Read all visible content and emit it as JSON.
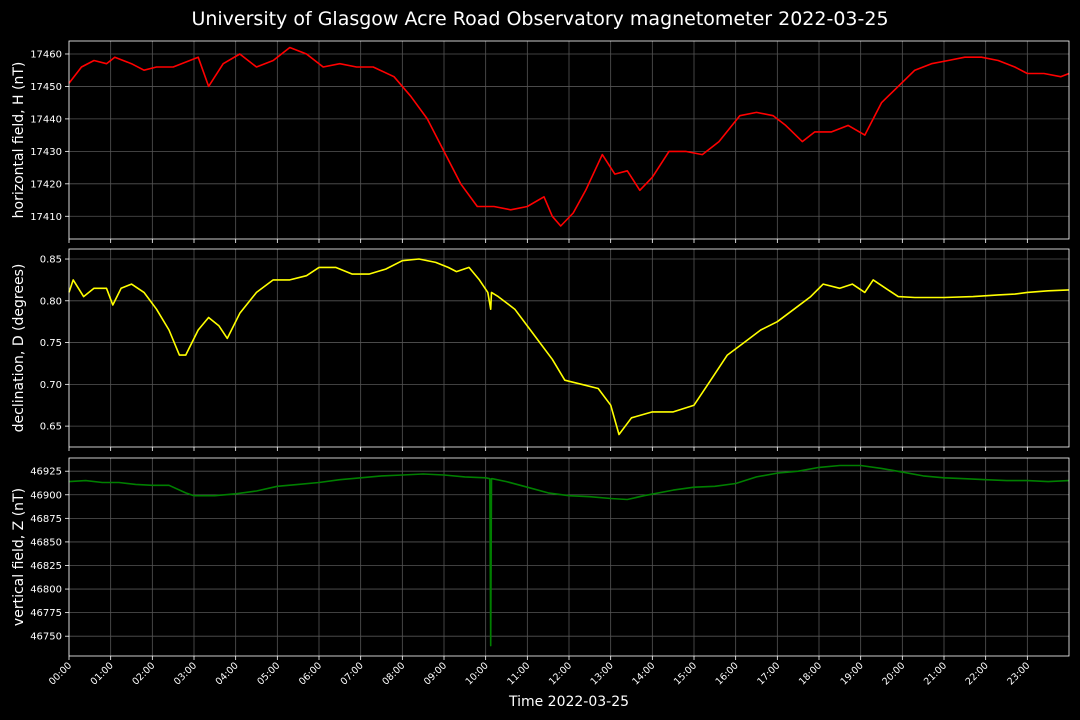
{
  "chart_data": {
    "type": "line",
    "title": "University of Glasgow Acre Road Observatory magnetometer 2022-03-25",
    "xlabel": "Time 2022-03-25",
    "x_tick_labels": [
      "00:00",
      "01:00",
      "02:00",
      "03:00",
      "04:00",
      "05:00",
      "06:00",
      "07:00",
      "08:00",
      "09:00",
      "10:00",
      "11:00",
      "12:00",
      "13:00",
      "14:00",
      "15:00",
      "16:00",
      "17:00",
      "18:00",
      "19:00",
      "20:00",
      "21:00",
      "22:00",
      "23:00"
    ],
    "xlim_hours": [
      0,
      24
    ],
    "grid": true,
    "panels": [
      {
        "ylabel": "horizontal field, H (nT)",
        "color": "#ff0000",
        "ylim": [
          17403,
          17464
        ],
        "yticks": [
          17410,
          17420,
          17430,
          17440,
          17450,
          17460
        ],
        "x_hours": [
          0,
          0.3,
          0.6,
          0.9,
          1.1,
          1.5,
          1.8,
          2.1,
          2.5,
          2.9,
          3.1,
          3.35,
          3.7,
          4.1,
          4.5,
          4.9,
          5.3,
          5.7,
          6.1,
          6.5,
          6.9,
          7.3,
          7.8,
          8.2,
          8.6,
          9,
          9.4,
          9.8,
          10.2,
          10.6,
          11,
          11.4,
          11.6,
          11.8,
          12.1,
          12.4,
          12.8,
          13.1,
          13.4,
          13.7,
          14,
          14.4,
          14.8,
          15.2,
          15.6,
          16.1,
          16.5,
          16.9,
          17.2,
          17.6,
          17.9,
          18.3,
          18.7,
          19.1,
          19.5,
          19.9,
          20.3,
          20.7,
          21.1,
          21.5,
          21.9,
          22.3,
          22.7,
          23,
          23.4,
          23.8,
          24
        ],
        "values": [
          17451,
          17456,
          17458,
          17457,
          17459,
          17457,
          17455,
          17456,
          17456,
          17458,
          17459,
          17450,
          17457,
          17460,
          17456,
          17458,
          17462,
          17460,
          17456,
          17457,
          17456,
          17456,
          17453,
          17447,
          17440,
          17430,
          17420,
          17413,
          17413,
          17412,
          17413,
          17416,
          17410,
          17407,
          17411,
          17418,
          17429,
          17423,
          17424,
          17418,
          17422,
          17430,
          17430,
          17429,
          17433,
          17441,
          17442,
          17441,
          17438,
          17433,
          17436,
          17436,
          17438,
          17435,
          17445,
          17450,
          17455,
          17457,
          17458,
          17459,
          17459,
          17458,
          17456,
          17454,
          17454,
          17453,
          17454
        ]
      },
      {
        "ylabel": "declination, D (degrees)",
        "color": "#ffff00",
        "ylim": [
          0.625,
          0.862
        ],
        "yticks": [
          0.65,
          0.7,
          0.75,
          0.8,
          0.85
        ],
        "x_hours": [
          0,
          0.1,
          0.35,
          0.6,
          0.9,
          1.05,
          1.25,
          1.5,
          1.8,
          2.1,
          2.4,
          2.65,
          2.8,
          3.1,
          3.35,
          3.6,
          3.8,
          4.1,
          4.5,
          4.9,
          5.3,
          5.7,
          6,
          6.4,
          6.8,
          7.2,
          7.6,
          8,
          8.4,
          8.8,
          9.1,
          9.3,
          9.6,
          9.85,
          10.05,
          10.12,
          10.14,
          10.3,
          10.7,
          11,
          11.3,
          11.6,
          11.9,
          12.3,
          12.7,
          13,
          13.2,
          13.5,
          14,
          14.5,
          15,
          15.4,
          15.8,
          16.2,
          16.6,
          17,
          17.4,
          17.8,
          18.1,
          18.5,
          18.8,
          19.1,
          19.3,
          19.6,
          19.9,
          20.3,
          21,
          21.7,
          22.3,
          22.7,
          23,
          23.5,
          24
        ],
        "values": [
          0.81,
          0.825,
          0.805,
          0.815,
          0.815,
          0.795,
          0.815,
          0.82,
          0.81,
          0.79,
          0.765,
          0.735,
          0.735,
          0.765,
          0.78,
          0.77,
          0.755,
          0.785,
          0.81,
          0.825,
          0.825,
          0.83,
          0.84,
          0.84,
          0.832,
          0.832,
          0.838,
          0.848,
          0.85,
          0.846,
          0.84,
          0.835,
          0.84,
          0.825,
          0.81,
          0.79,
          0.81,
          0.805,
          0.79,
          0.77,
          0.75,
          0.73,
          0.705,
          0.7,
          0.695,
          0.675,
          0.64,
          0.66,
          0.667,
          0.667,
          0.675,
          0.705,
          0.735,
          0.75,
          0.765,
          0.775,
          0.79,
          0.805,
          0.82,
          0.815,
          0.82,
          0.81,
          0.825,
          0.815,
          0.805,
          0.804,
          0.804,
          0.805,
          0.807,
          0.808,
          0.81,
          0.812,
          0.813
        ]
      },
      {
        "ylabel": "vertical field, Z (nT)",
        "color": "#007f00",
        "ylim": [
          46729,
          46939
        ],
        "yticks": [
          46750,
          46775,
          46800,
          46825,
          46850,
          46875,
          46900,
          46925
        ],
        "x_hours": [
          0,
          0.4,
          0.8,
          1.2,
          1.6,
          2,
          2.4,
          2.8,
          3,
          3.5,
          4,
          4.5,
          5,
          5.5,
          6,
          6.5,
          7,
          7.5,
          8,
          8.5,
          9,
          9.5,
          10,
          10.1,
          10.12,
          10.14,
          10.16,
          10.5,
          11,
          11.5,
          12,
          12.5,
          13,
          13.4,
          13.8,
          14.5,
          15,
          15.5,
          16,
          16.5,
          17,
          17.5,
          18,
          18.5,
          19,
          19.5,
          20,
          20.5,
          21,
          21.5,
          22,
          22.5,
          23,
          23.5,
          24
        ],
        "values": [
          46914,
          46915,
          46913,
          46913,
          46911,
          46910,
          46910,
          46902,
          46899,
          46899,
          46901,
          46904,
          46909,
          46911,
          46913,
          46916,
          46918,
          46920,
          46921,
          46922,
          46921,
          46919,
          46918,
          46917,
          46740,
          46917,
          46917,
          46914,
          46908,
          46902,
          46899,
          46898,
          46896,
          46895,
          46899,
          46905,
          46908,
          46909,
          46912,
          46919,
          46923,
          46925,
          46929,
          46931,
          46931,
          46928,
          46924,
          46920,
          46918,
          46917,
          46916,
          46915,
          46915,
          46914,
          46915
        ]
      }
    ]
  }
}
